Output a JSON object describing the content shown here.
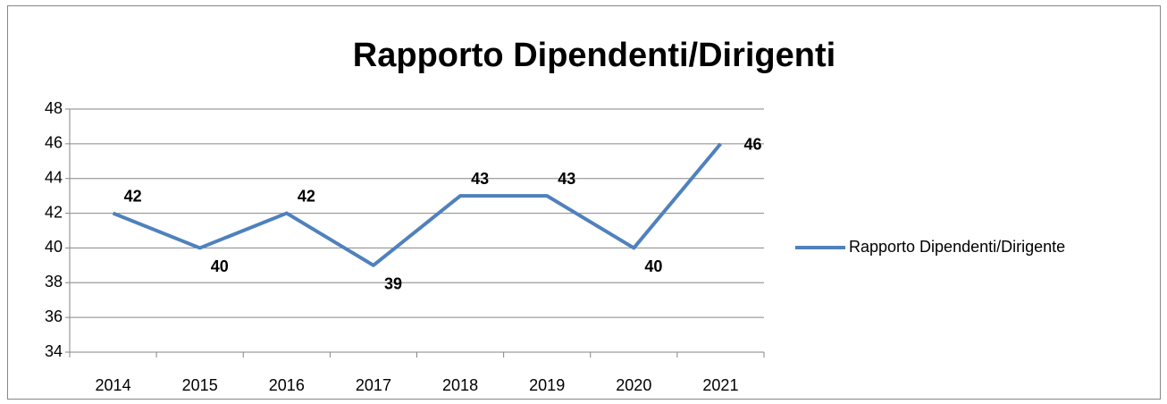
{
  "chart_data": {
    "type": "line",
    "title": "Rapporto Dipendenti/Dirigenti",
    "categories": [
      "2014",
      "2015",
      "2016",
      "2017",
      "2018",
      "2019",
      "2020",
      "2021"
    ],
    "series": [
      {
        "name": "Rapporto Dipendenti/Dirigente",
        "color": "#4f81bd",
        "values": [
          42,
          40,
          42,
          39,
          43,
          43,
          40,
          46
        ]
      }
    ],
    "ylim": [
      34,
      48
    ],
    "yticks": [
      34,
      36,
      38,
      40,
      42,
      44,
      46,
      48
    ],
    "grid": true,
    "legend": "right"
  }
}
